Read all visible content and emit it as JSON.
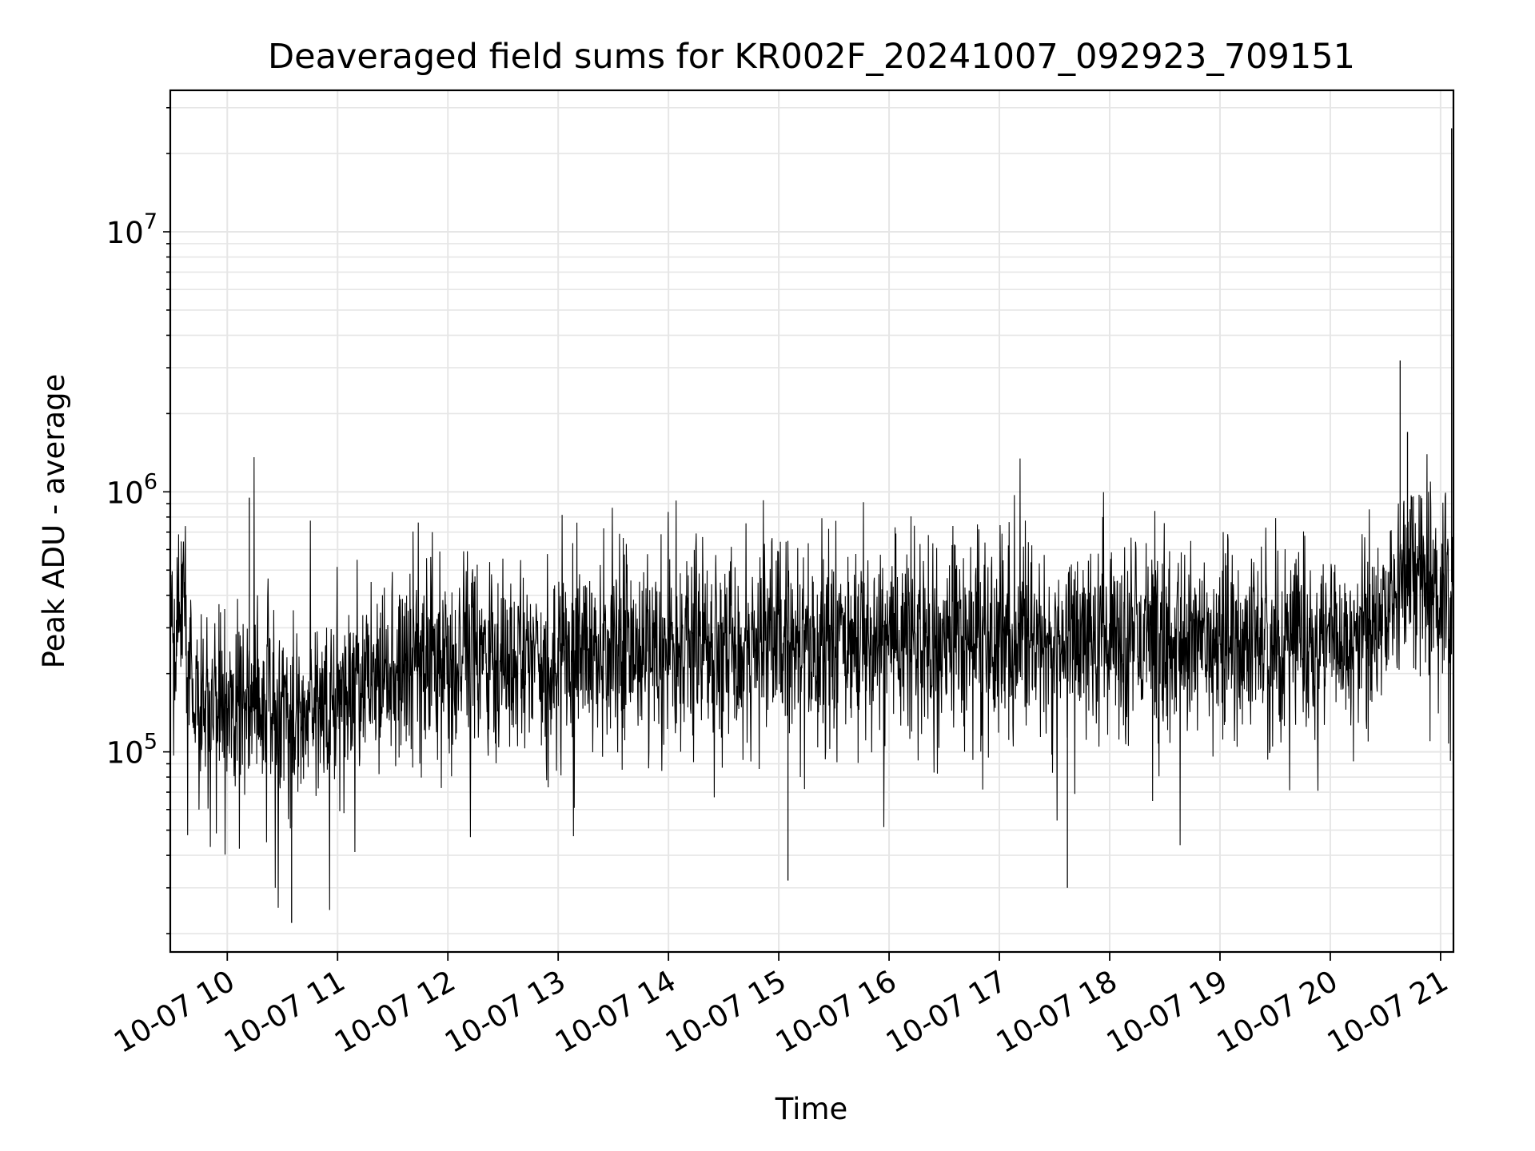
{
  "chart_data": {
    "type": "line",
    "title": "Deaveraged field sums for KR002F_20241007_092923_709151",
    "xlabel": "Time",
    "ylabel": "Peak ADU - average",
    "x_range": [
      "2024-10-07 09:29",
      "2024-10-07 21:07"
    ],
    "yscale": "log",
    "ylim": [
      17000,
      35000000
    ],
    "grid": true,
    "x_ticks": [
      {
        "t": "2024-10-07 10:00",
        "label": "10-07 10"
      },
      {
        "t": "2024-10-07 11:00",
        "label": "10-07 11"
      },
      {
        "t": "2024-10-07 12:00",
        "label": "10-07 12"
      },
      {
        "t": "2024-10-07 13:00",
        "label": "10-07 13"
      },
      {
        "t": "2024-10-07 14:00",
        "label": "10-07 14"
      },
      {
        "t": "2024-10-07 15:00",
        "label": "10-07 15"
      },
      {
        "t": "2024-10-07 16:00",
        "label": "10-07 16"
      },
      {
        "t": "2024-10-07 17:00",
        "label": "10-07 17"
      },
      {
        "t": "2024-10-07 18:00",
        "label": "10-07 18"
      },
      {
        "t": "2024-10-07 19:00",
        "label": "10-07 19"
      },
      {
        "t": "2024-10-07 20:00",
        "label": "10-07 20"
      },
      {
        "t": "2024-10-07 21:00",
        "label": "10-07 21"
      }
    ],
    "y_ticks": [
      {
        "value": 100000,
        "base": "10",
        "exp": "5"
      },
      {
        "value": 1000000,
        "base": "10",
        "exp": "6"
      },
      {
        "value": 10000000,
        "base": "10",
        "exp": "7"
      }
    ],
    "line_color": "#000000",
    "series": [
      {
        "values_at": [
          {
            "t": "2024-10-07 09:29",
            "y": 250000
          },
          {
            "t": "2024-10-07 09:35",
            "y": 300000
          },
          {
            "t": "2024-10-07 09:45",
            "y": 150000
          },
          {
            "t": "2024-10-07 10:00",
            "y": 150000
          },
          {
            "t": "2024-10-07 10:15",
            "y": 160000
          },
          {
            "t": "2024-10-07 10:30",
            "y": 140000
          },
          {
            "t": "2024-10-07 10:45",
            "y": 155000
          },
          {
            "t": "2024-10-07 11:00",
            "y": 170000
          },
          {
            "t": "2024-10-07 11:30",
            "y": 190000
          },
          {
            "t": "2024-10-07 12:00",
            "y": 220000
          },
          {
            "t": "2024-10-07 12:30",
            "y": 230000
          },
          {
            "t": "2024-10-07 13:00",
            "y": 240000
          },
          {
            "t": "2024-10-07 13:30",
            "y": 250000
          },
          {
            "t": "2024-10-07 14:00",
            "y": 260000
          },
          {
            "t": "2024-10-07 14:30",
            "y": 280000
          },
          {
            "t": "2024-10-07 15:00",
            "y": 270000
          },
          {
            "t": "2024-10-07 15:30",
            "y": 260000
          },
          {
            "t": "2024-10-07 16:00",
            "y": 270000
          },
          {
            "t": "2024-10-07 16:30",
            "y": 280000
          },
          {
            "t": "2024-10-07 17:00",
            "y": 290000
          },
          {
            "t": "2024-10-07 17:30",
            "y": 280000
          },
          {
            "t": "2024-10-07 18:00",
            "y": 270000
          },
          {
            "t": "2024-10-07 18:30",
            "y": 260000
          },
          {
            "t": "2024-10-07 19:00",
            "y": 270000
          },
          {
            "t": "2024-10-07 19:30",
            "y": 270000
          },
          {
            "t": "2024-10-07 20:00",
            "y": 280000
          },
          {
            "t": "2024-10-07 20:30",
            "y": 300000
          },
          {
            "t": "2024-10-07 20:38",
            "y": 550000
          },
          {
            "t": "2024-10-07 20:50",
            "y": 450000
          },
          {
            "t": "2024-10-07 21:05",
            "y": 450000
          }
        ],
        "peaks": [
          {
            "t": "2024-10-07 10:12",
            "y": 950000
          },
          {
            "t": "2024-10-07 20:38",
            "y": 3200000
          },
          {
            "t": "2024-10-07 20:42",
            "y": 1700000
          },
          {
            "t": "2024-10-07 21:06",
            "y": 25000000
          }
        ],
        "troughs": [
          {
            "t": "2024-10-07 10:35",
            "y": 22000
          },
          {
            "t": "2024-10-07 17:37",
            "y": 30000
          },
          {
            "t": "2024-10-07 15:05",
            "y": 32000
          }
        ]
      }
    ]
  }
}
